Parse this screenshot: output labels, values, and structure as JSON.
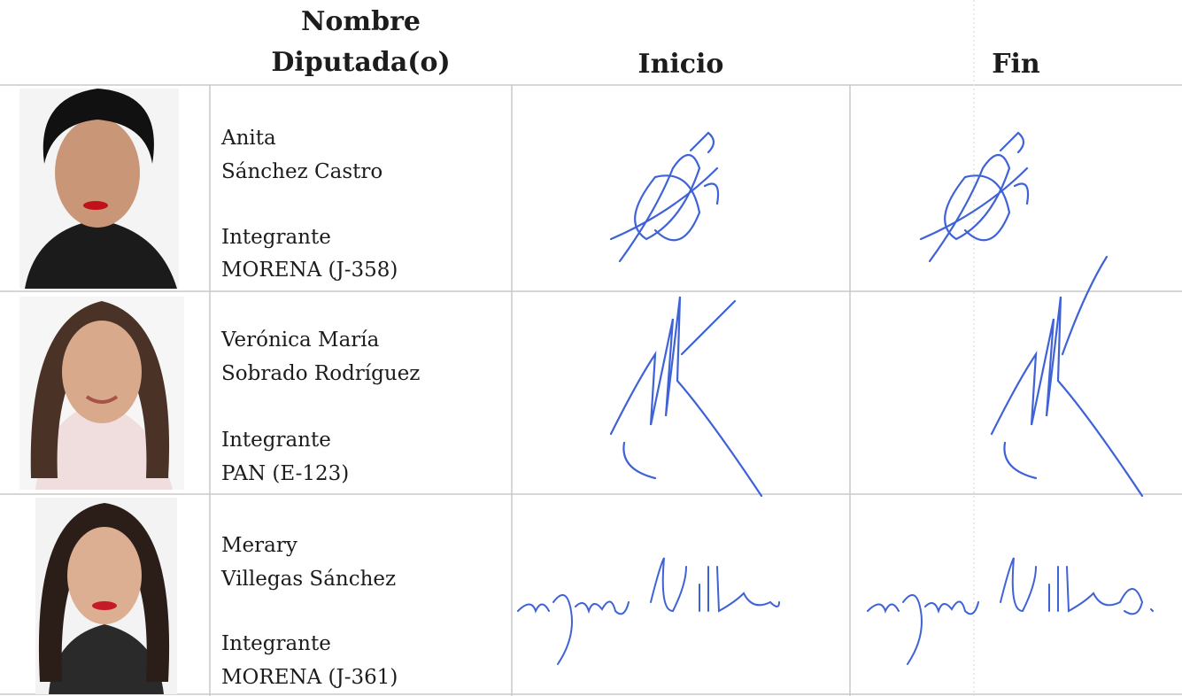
{
  "header": {
    "name": [
      "Nombre",
      "Diputada(o)"
    ],
    "start": "Inicio",
    "end": "Fin"
  },
  "rows": [
    {
      "name": [
        "Anita",
        "Sánchez Castro"
      ],
      "role": "Integrante",
      "party": "MORENA (J-358)"
    },
    {
      "name": [
        "Verónica María",
        "Sobrado Rodríguez"
      ],
      "role": "Integrante",
      "party": "PAN (E-123)"
    },
    {
      "name": [
        "Merary",
        "Villegas Sánchez"
      ],
      "role": "Integrante",
      "party": "MORENA (J-361)"
    }
  ]
}
